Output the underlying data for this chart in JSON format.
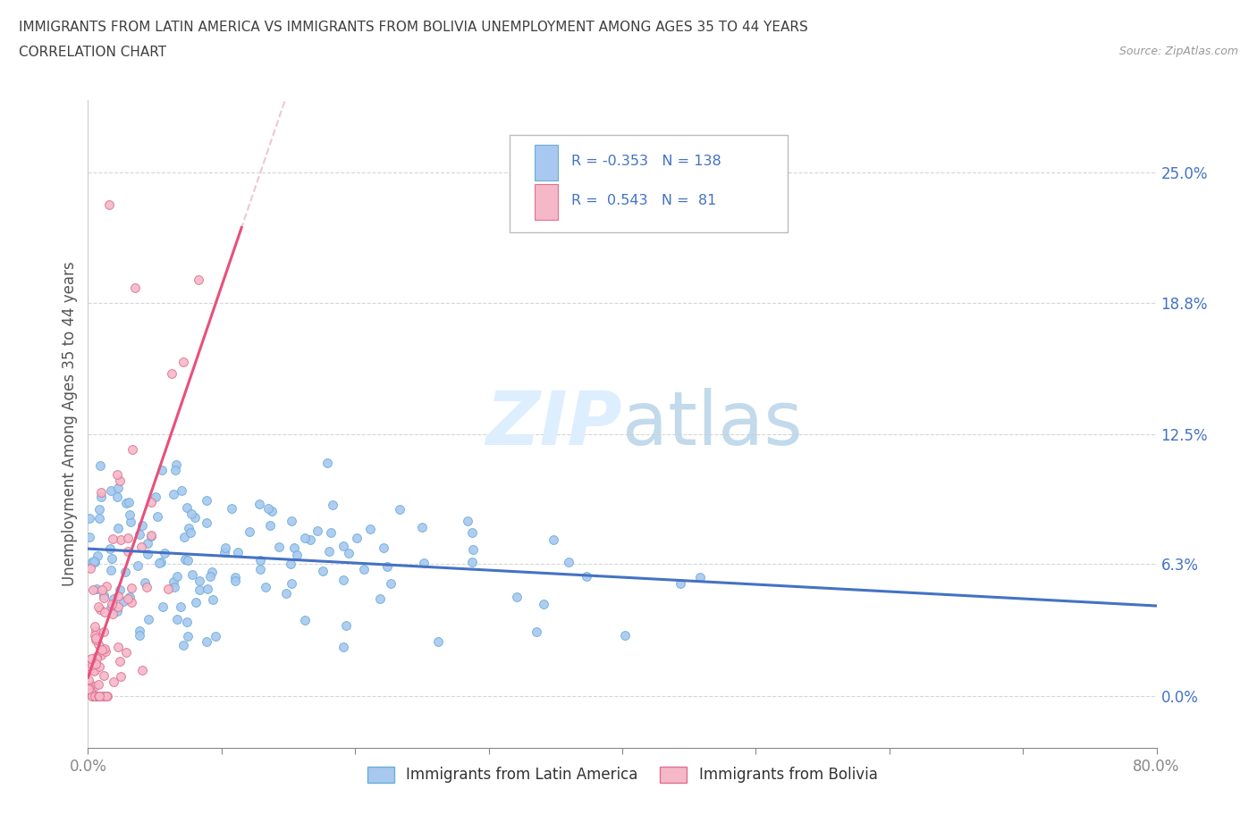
{
  "title_line1": "IMMIGRANTS FROM LATIN AMERICA VS IMMIGRANTS FROM BOLIVIA UNEMPLOYMENT AMONG AGES 35 TO 44 YEARS",
  "title_line2": "CORRELATION CHART",
  "source_text": "Source: ZipAtlas.com",
  "ylabel": "Unemployment Among Ages 35 to 44 years",
  "xmin": 0.0,
  "xmax": 0.8,
  "ymin": -0.025,
  "ymax": 0.285,
  "yticks": [
    0.0,
    0.063,
    0.125,
    0.188,
    0.25
  ],
  "ytick_labels": [
    "0.0%",
    "6.3%",
    "12.5%",
    "18.8%",
    "25.0%"
  ],
  "xtick_positions": [
    0.0,
    0.1,
    0.2,
    0.3,
    0.4,
    0.5,
    0.6,
    0.7,
    0.8
  ],
  "scatter_latin_color": "#a8c8f0",
  "scatter_latin_edge": "#6aaed6",
  "scatter_bolivia_color": "#f4b8c8",
  "scatter_bolivia_edge": "#e07090",
  "trend_latin_color": "#4472c4",
  "trend_bolivia_color": "#e8507a",
  "trend_bolivia_dashed_color": "#e8b0c0",
  "watermark_color": "#ddeeff",
  "R_latin": -0.353,
  "N_latin": 138,
  "R_bolivia": 0.543,
  "N_bolivia": 81,
  "grid_color": "#cccccc",
  "title_color": "#404040",
  "axis_label_color": "#555555",
  "tick_label_color": "#4472c4",
  "legend_R_color": "#222222",
  "legend_N_color": "#4472c4",
  "legend_label_latin": "Immigrants from Latin America",
  "legend_label_bolivia": "Immigrants from Bolivia"
}
